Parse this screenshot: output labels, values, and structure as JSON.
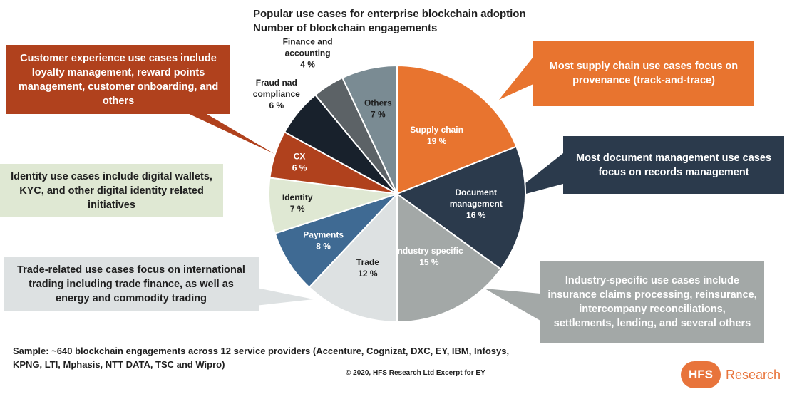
{
  "chart_data": {
    "type": "pie",
    "title": "Popular use cases for enterprise blockchain adoption",
    "subtitle": "Number of blockchain engagements",
    "slices": [
      {
        "label": "Supply chain",
        "value": 19,
        "value_label": "19 %",
        "color": "#e8742f"
      },
      {
        "label": "Document management",
        "value": 16,
        "value_label": "16 %",
        "color": "#2b3a4c"
      },
      {
        "label": "Industry specific",
        "value": 15,
        "value_label": "15 %",
        "color": "#a3a8a7"
      },
      {
        "label": "Trade",
        "value": 12,
        "value_label": "12 %",
        "color": "#dde1e2"
      },
      {
        "label": "Payments",
        "value": 8,
        "value_label": "8 %",
        "color": "#3f6a93"
      },
      {
        "label": "Identity",
        "value": 7,
        "value_label": "7 %",
        "color": "#dfe8d3"
      },
      {
        "label": "CX",
        "value": 6,
        "value_label": "6 %",
        "color": "#b0411d"
      },
      {
        "label": "Fraud nad compliance",
        "value": 6,
        "value_label": "6 %",
        "color": "#18212c"
      },
      {
        "label": "Finance and accounting",
        "value": 4,
        "value_label": "4 %",
        "color": "#5c6266"
      },
      {
        "label": "Others",
        "value": 7,
        "value_label": "7 %",
        "color": "#7a8b93"
      }
    ]
  },
  "callouts": {
    "supply_chain": "Most supply chain use cases focus on provenance (track-and-trace)",
    "document": "Most document management use cases focus on records management",
    "industry": "Industry-specific use cases include insurance claims processing, reinsurance, intercompany reconciliations, settlements, lending, and several others",
    "trade": "Trade-related use cases focus on international trading including trade finance, as well as energy and commodity trading",
    "identity": "Identity use cases include digital wallets, KYC, and other digital identity related initiatives",
    "cx": "Customer experience use cases include loyalty management, reward points management, customer onboarding, and others"
  },
  "footer": {
    "sample": "Sample: ~640 blockchain engagements across 12 service providers (Accenture, Cognizat, DXC, EY, IBM, Infosys, KPNG, LTI, Mphasis, NTT DATA, TSC and Wipro)",
    "copyright": "© 2020, HFS Research Ltd Excerpt for EY",
    "logo_mark": "HFS",
    "logo_text": "Research"
  }
}
